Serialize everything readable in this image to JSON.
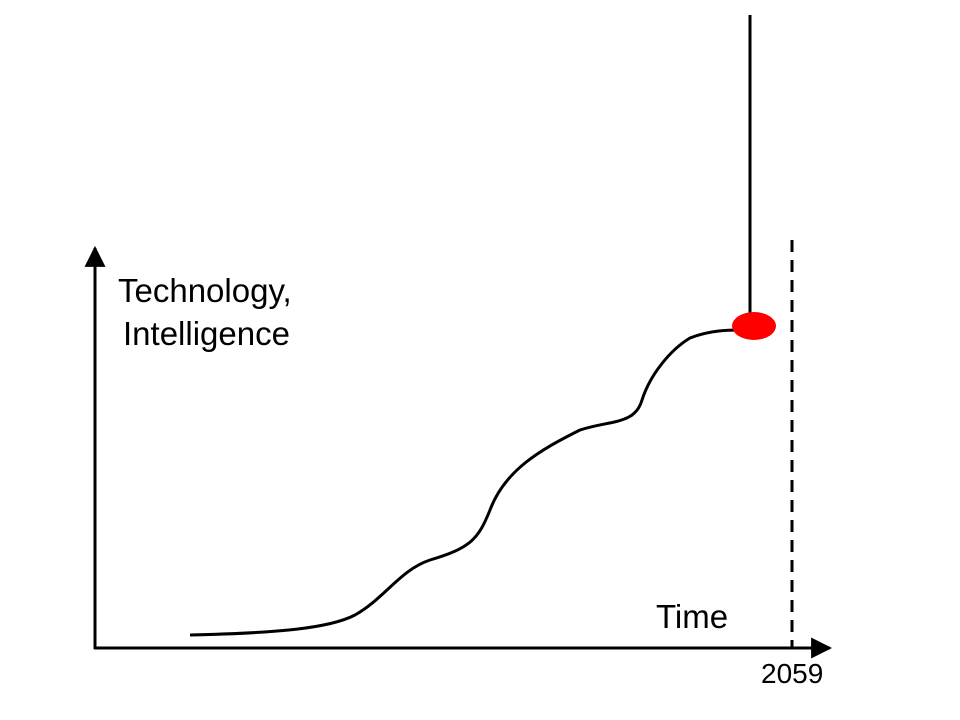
{
  "axes": {
    "y_label": [
      "Technology,",
      "Intelligence"
    ],
    "x_label": "Time"
  },
  "marker": {
    "label": "2059"
  }
}
